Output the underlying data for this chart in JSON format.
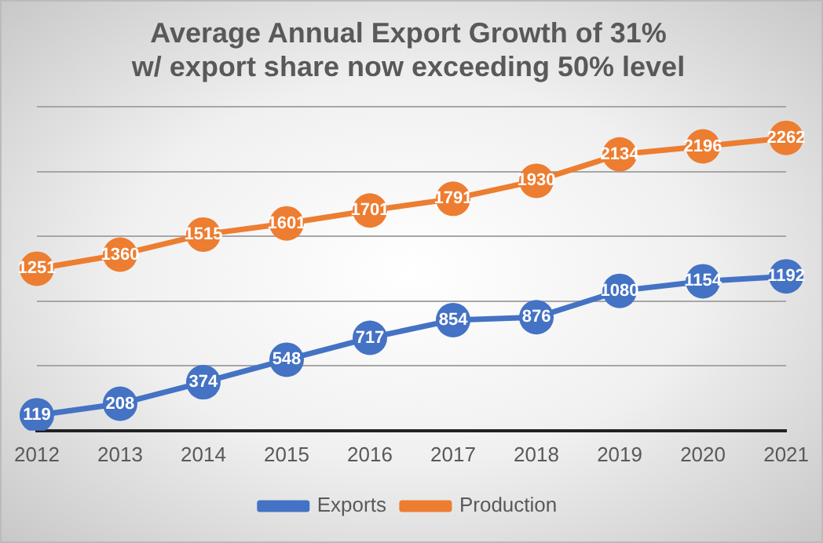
{
  "chart_data": {
    "type": "line",
    "title": "Average Annual Export Growth of 31%",
    "subtitle": "w/ export share now exceeding 50% level",
    "categories": [
      "2012",
      "2013",
      "2014",
      "2015",
      "2016",
      "2017",
      "2018",
      "2019",
      "2020",
      "2021"
    ],
    "series": [
      {
        "name": "Exports",
        "color": "#4472c4",
        "values": [
          119,
          208,
          374,
          548,
          717,
          854,
          876,
          1080,
          1154,
          1192
        ]
      },
      {
        "name": "Production",
        "color": "#ed7d31",
        "values": [
          1251,
          1360,
          1515,
          1601,
          1701,
          1791,
          1930,
          2134,
          2196,
          2262
        ]
      }
    ],
    "ylim": [
      0,
      2500
    ],
    "yticks": [
      {
        "value": 0,
        "label": null
      },
      {
        "value": 500,
        "label": null
      },
      {
        "value": 1000,
        "label": null
      },
      {
        "value": 1500,
        "label": null
      },
      {
        "value": 2000,
        "label": null
      },
      {
        "value": 2500,
        "label": null
      }
    ],
    "tick_labels": "x",
    "grid": "y",
    "legend": "bottom",
    "marker": "circle",
    "line_style": "solid",
    "data_labels": true
  }
}
